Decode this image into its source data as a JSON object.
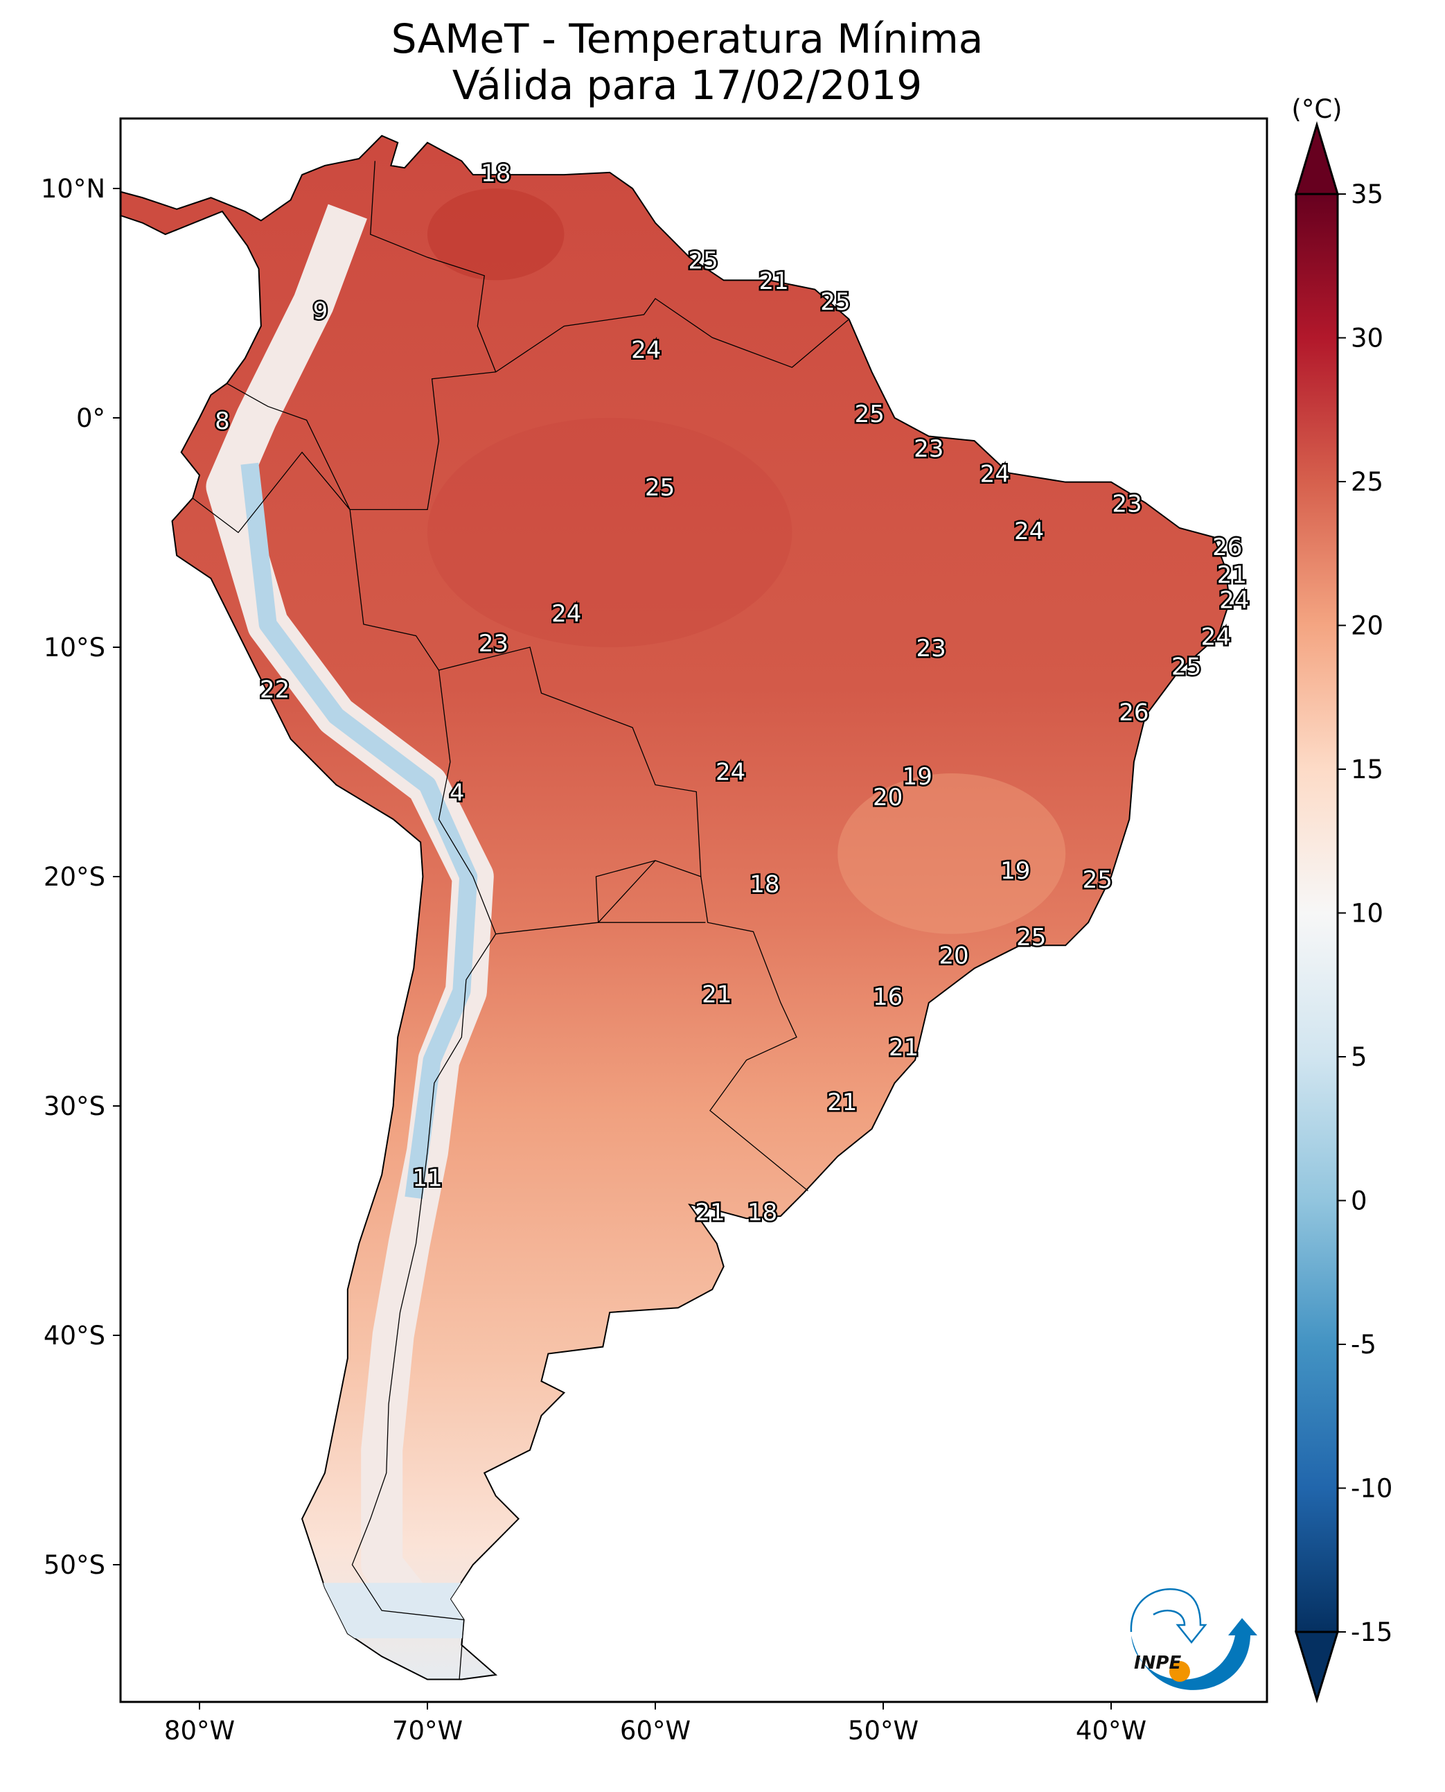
{
  "title": {
    "line1": "SAMeT - Temperatura Mínima",
    "line2": "Válida para 17/02/2019"
  },
  "colorbar": {
    "unit_label": "(°C)",
    "ticks": [
      "35",
      "30",
      "25",
      "20",
      "15",
      "10",
      "5",
      "0",
      "-5",
      "-10",
      "-15"
    ],
    "tick_values": [
      35,
      30,
      25,
      20,
      15,
      10,
      5,
      0,
      -5,
      -10,
      -15
    ],
    "range": [
      -17.5,
      37.5
    ],
    "extend": "both",
    "colormap": "RdBu_r",
    "colors": [
      "#053061",
      "#2166ac",
      "#4393c3",
      "#92c5de",
      "#d1e5f0",
      "#f7f7f7",
      "#fddbc7",
      "#f4a582",
      "#d6604d",
      "#b2182b",
      "#67001f"
    ]
  },
  "axes": {
    "lat_ticks": [
      {
        "label": "10°N",
        "lat": 10
      },
      {
        "label": "0°",
        "lat": 0
      },
      {
        "label": "10°S",
        "lat": -10
      },
      {
        "label": "20°S",
        "lat": -20
      },
      {
        "label": "30°S",
        "lat": -30
      },
      {
        "label": "40°S",
        "lat": -40
      },
      {
        "label": "50°S",
        "lat": -50
      }
    ],
    "lon_ticks": [
      {
        "label": "80°W",
        "lon": -80
      },
      {
        "label": "70°W",
        "lon": -70
      },
      {
        "label": "60°W",
        "lon": -60
      },
      {
        "label": "50°W",
        "lon": -50
      },
      {
        "label": "40°W",
        "lon": -40
      }
    ],
    "lon_range": [
      -83.5,
      -33.2
    ],
    "lat_range": [
      -55.9,
      13.0
    ]
  },
  "stations": [
    {
      "v": "18",
      "lon": -67.0,
      "lat": 10.6
    },
    {
      "v": "25",
      "lon": -57.9,
      "lat": 6.8
    },
    {
      "v": "21",
      "lon": -54.8,
      "lat": 5.9
    },
    {
      "v": "25",
      "lon": -52.1,
      "lat": 5.0
    },
    {
      "v": "9",
      "lon": -74.7,
      "lat": 4.6
    },
    {
      "v": "24",
      "lon": -60.4,
      "lat": 2.9
    },
    {
      "v": "8",
      "lon": -79.0,
      "lat": -0.2
    },
    {
      "v": "25",
      "lon": -50.6,
      "lat": 0.1
    },
    {
      "v": "23",
      "lon": -48.0,
      "lat": -1.4
    },
    {
      "v": "25",
      "lon": -59.8,
      "lat": -3.1
    },
    {
      "v": "24",
      "lon": -45.1,
      "lat": -2.5
    },
    {
      "v": "23",
      "lon": -39.3,
      "lat": -3.8
    },
    {
      "v": "24",
      "lon": -43.6,
      "lat": -5.0
    },
    {
      "v": "26",
      "lon": -34.9,
      "lat": -5.7
    },
    {
      "v": "21",
      "lon": -34.7,
      "lat": -6.9
    },
    {
      "v": "24",
      "lon": -34.6,
      "lat": -8.0
    },
    {
      "v": "24",
      "lon": -63.9,
      "lat": -8.6
    },
    {
      "v": "24",
      "lon": -35.4,
      "lat": -9.6
    },
    {
      "v": "23",
      "lon": -67.1,
      "lat": -9.9
    },
    {
      "v": "23",
      "lon": -47.9,
      "lat": -10.1
    },
    {
      "v": "25",
      "lon": -36.7,
      "lat": -10.9
    },
    {
      "v": "22",
      "lon": -76.7,
      "lat": -11.9
    },
    {
      "v": "26",
      "lon": -39.0,
      "lat": -12.9
    },
    {
      "v": "24",
      "lon": -56.7,
      "lat": -15.5
    },
    {
      "v": "19",
      "lon": -48.5,
      "lat": -15.7
    },
    {
      "v": "4",
      "lon": -68.7,
      "lat": -16.4
    },
    {
      "v": "20",
      "lon": -49.8,
      "lat": -16.6
    },
    {
      "v": "19",
      "lon": -44.2,
      "lat": -19.8
    },
    {
      "v": "25",
      "lon": -40.6,
      "lat": -20.2
    },
    {
      "v": "18",
      "lon": -55.2,
      "lat": -20.4
    },
    {
      "v": "25",
      "lon": -43.5,
      "lat": -22.7
    },
    {
      "v": "20",
      "lon": -46.9,
      "lat": -23.5
    },
    {
      "v": "21",
      "lon": -57.3,
      "lat": -25.2
    },
    {
      "v": "16",
      "lon": -49.8,
      "lat": -25.3
    },
    {
      "v": "21",
      "lon": -49.1,
      "lat": -27.5
    },
    {
      "v": "21",
      "lon": -51.8,
      "lat": -29.9
    },
    {
      "v": "11",
      "lon": -70.0,
      "lat": -33.2
    },
    {
      "v": "21",
      "lon": -57.6,
      "lat": -34.7
    },
    {
      "v": "18",
      "lon": -55.3,
      "lat": -34.7
    }
  ],
  "logo": {
    "text": "INPE"
  }
}
